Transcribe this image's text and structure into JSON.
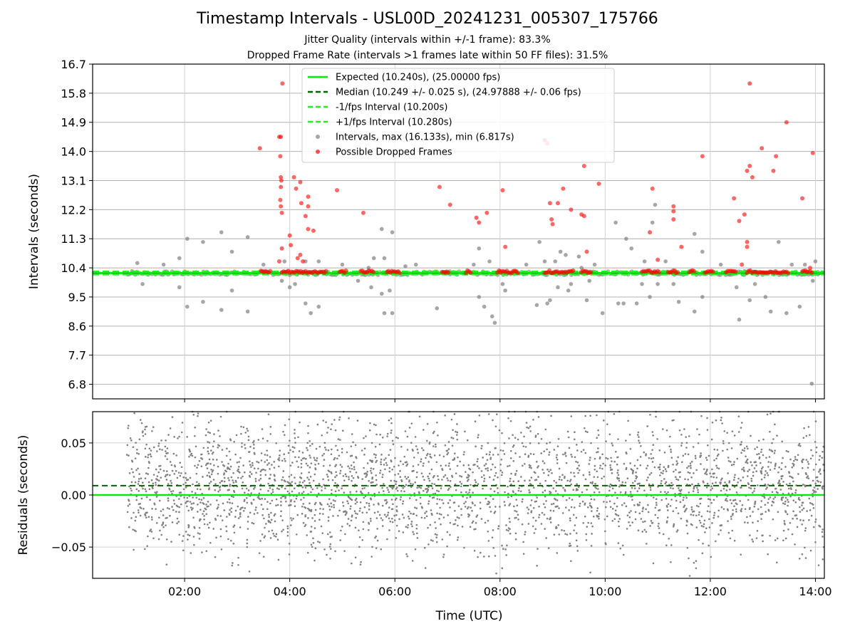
{
  "title": "Timestamp Intervals - USL00D_20241231_005307_175766",
  "subtitle_1": "Jitter Quality (intervals within +/-1 frame): 83.3%",
  "subtitle_2": "Dropped Frame Rate (intervals >1 frames late within 50 FF files): 31.5%",
  "chart_data": [
    {
      "type": "scatter",
      "ylabel": "Intervals (seconds)",
      "ylim": [
        6.35,
        16.7
      ],
      "yticks": [
        "16.7",
        "15.8",
        "14.9",
        "14.0",
        "13.1",
        "12.2",
        "11.3",
        "10.4",
        "9.5",
        "8.6",
        "7.7",
        "6.8"
      ],
      "xlim_hours": [
        0.25,
        14.17
      ],
      "grid": true,
      "legend_position": "top-center",
      "reference_lines": [
        {
          "name": "Expected (10.240s), (25.00000 fps)",
          "y": 10.24,
          "style": "solid",
          "color": "#00ee00"
        },
        {
          "name": "Median (10.249 +/- 0.025 s), (24.97888 +/- 0.06 fps)",
          "y": 10.249,
          "style": "dashed",
          "color": "#006400"
        },
        {
          "name": "-1/fps Interval (10.200s)",
          "y": 10.2,
          "style": "dashed",
          "color": "#22ee22"
        },
        {
          "name": "+1/fps Interval (10.280s)",
          "y": 10.28,
          "style": "dashed",
          "color": "#22ee22"
        }
      ],
      "series": [
        {
          "name": "Intervals, max (16.133s), min (6.817s)",
          "color": "#808080",
          "points": [
            [
              1.0,
              10.3
            ],
            [
              1.1,
              10.55
            ],
            [
              1.2,
              9.9
            ],
            [
              1.6,
              10.5
            ],
            [
              1.9,
              10.7
            ],
            [
              1.9,
              9.8
            ],
            [
              2.05,
              11.3
            ],
            [
              2.05,
              9.2
            ],
            [
              2.35,
              11.2
            ],
            [
              2.35,
              9.35
            ],
            [
              2.7,
              11.5
            ],
            [
              2.7,
              9.1
            ],
            [
              2.9,
              10.9
            ],
            [
              2.9,
              9.7
            ],
            [
              3.2,
              11.35
            ],
            [
              3.2,
              9.05
            ],
            [
              3.5,
              10.5
            ],
            [
              3.85,
              10.0
            ],
            [
              3.9,
              10.6
            ],
            [
              4.0,
              9.8
            ],
            [
              4.1,
              9.9
            ],
            [
              4.3,
              10.6
            ],
            [
              4.3,
              9.3
            ],
            [
              4.4,
              9.0
            ],
            [
              4.55,
              9.2
            ],
            [
              4.55,
              10.6
            ],
            [
              5.0,
              10.5
            ],
            [
              5.3,
              10.0
            ],
            [
              5.5,
              10.4
            ],
            [
              5.55,
              9.8
            ],
            [
              5.6,
              10.7
            ],
            [
              5.75,
              11.6
            ],
            [
              5.75,
              9.6
            ],
            [
              5.8,
              10.7
            ],
            [
              5.8,
              9.0
            ],
            [
              5.9,
              9.7
            ],
            [
              5.95,
              11.5
            ],
            [
              5.95,
              9.0
            ],
            [
              6.2,
              10.45
            ],
            [
              6.4,
              10.5
            ],
            [
              6.8,
              9.15
            ],
            [
              7.05,
              10.2
            ],
            [
              7.5,
              10.5
            ],
            [
              7.6,
              11.0
            ],
            [
              7.6,
              9.5
            ],
            [
              7.7,
              9.2
            ],
            [
              7.8,
              10.6
            ],
            [
              7.85,
              8.9
            ],
            [
              7.9,
              8.7
            ],
            [
              8.0,
              10.3
            ],
            [
              8.05,
              9.9
            ],
            [
              8.1,
              9.7
            ],
            [
              8.5,
              10.5
            ],
            [
              8.7,
              9.25
            ],
            [
              8.75,
              11.2
            ],
            [
              8.85,
              10.6
            ],
            [
              8.9,
              9.3
            ],
            [
              8.95,
              9.4
            ],
            [
              9.05,
              10.6
            ],
            [
              9.1,
              9.8
            ],
            [
              9.15,
              10.9
            ],
            [
              9.25,
              10.8
            ],
            [
              9.3,
              9.7
            ],
            [
              9.35,
              9.9
            ],
            [
              9.5,
              10.75
            ],
            [
              9.55,
              10.4
            ],
            [
              9.65,
              9.4
            ],
            [
              9.7,
              10.0
            ],
            [
              9.8,
              10.5
            ],
            [
              9.95,
              9.0
            ],
            [
              10.2,
              11.8
            ],
            [
              10.25,
              9.3
            ],
            [
              10.35,
              9.3
            ],
            [
              10.4,
              11.3
            ],
            [
              10.5,
              11.0
            ],
            [
              10.6,
              9.3
            ],
            [
              10.7,
              9.9
            ],
            [
              10.75,
              10.6
            ],
            [
              10.85,
              9.5
            ],
            [
              10.9,
              11.8
            ],
            [
              10.95,
              12.35
            ],
            [
              11.0,
              9.9
            ],
            [
              11.15,
              10.6
            ],
            [
              11.3,
              9.9
            ],
            [
              11.4,
              9.35
            ],
            [
              11.7,
              11.45
            ],
            [
              11.7,
              9.05
            ],
            [
              11.85,
              10.9
            ],
            [
              11.85,
              9.5
            ],
            [
              12.2,
              10.5
            ],
            [
              12.35,
              10.2
            ],
            [
              12.5,
              9.8
            ],
            [
              12.55,
              8.8
            ],
            [
              12.65,
              10.3
            ],
            [
              12.75,
              9.4
            ],
            [
              12.85,
              9.9
            ],
            [
              13.05,
              9.5
            ],
            [
              13.15,
              9.05
            ],
            [
              13.3,
              11.2
            ],
            [
              13.45,
              9.0
            ],
            [
              13.55,
              10.5
            ],
            [
              13.7,
              9.2
            ],
            [
              13.8,
              10.5
            ],
            [
              13.95,
              10.0
            ],
            [
              14.0,
              10.6
            ],
            [
              14.05,
              10.2
            ],
            [
              13.93,
              6.82
            ]
          ]
        },
        {
          "name": "Possible Dropped Frames",
          "color": "#ff0000",
          "points": [
            [
              3.43,
              14.1
            ],
            [
              3.8,
              14.45
            ],
            [
              3.83,
              14.45
            ],
            [
              3.82,
              13.85
            ],
            [
              3.83,
              13.2
            ],
            [
              3.84,
              13.1
            ],
            [
              3.83,
              12.9
            ],
            [
              3.82,
              12.5
            ],
            [
              3.83,
              12.3
            ],
            [
              3.85,
              12.1
            ],
            [
              3.85,
              11.0
            ],
            [
              3.8,
              10.6
            ],
            [
              3.86,
              16.1
            ],
            [
              4.0,
              11.4
            ],
            [
              4.02,
              11.1
            ],
            [
              4.08,
              13.2
            ],
            [
              4.12,
              12.85
            ],
            [
              4.2,
              13.05
            ],
            [
              4.22,
              12.4
            ],
            [
              4.3,
              12.0
            ],
            [
              4.35,
              12.6
            ],
            [
              4.35,
              12.3
            ],
            [
              4.35,
              11.6
            ],
            [
              4.45,
              11.55
            ],
            [
              4.2,
              10.8
            ],
            [
              4.15,
              10.7
            ],
            [
              4.25,
              10.6
            ],
            [
              4.9,
              12.8
            ],
            [
              5.4,
              12.1
            ],
            [
              6.85,
              12.9
            ],
            [
              7.05,
              12.35
            ],
            [
              7.55,
              11.95
            ],
            [
              7.6,
              11.8
            ],
            [
              7.75,
              12.1
            ],
            [
              8.05,
              12.8
            ],
            [
              8.1,
              11.05
            ],
            [
              8.85,
              14.35
            ],
            [
              8.9,
              14.25
            ],
            [
              8.95,
              12.4
            ],
            [
              8.98,
              11.9
            ],
            [
              9.0,
              11.75
            ],
            [
              9.1,
              12.4
            ],
            [
              9.2,
              12.85
            ],
            [
              9.35,
              12.2
            ],
            [
              9.55,
              12.05
            ],
            [
              9.6,
              12.0
            ],
            [
              9.6,
              13.55
            ],
            [
              9.65,
              10.9
            ],
            [
              9.88,
              13.0
            ],
            [
              10.85,
              11.5
            ],
            [
              11.0,
              10.65
            ],
            [
              10.9,
              12.85
            ],
            [
              11.3,
              12.3
            ],
            [
              11.3,
              12.15
            ],
            [
              11.3,
              11.9
            ],
            [
              11.45,
              11.05
            ],
            [
              11.85,
              13.85
            ],
            [
              12.45,
              12.55
            ],
            [
              12.55,
              11.85
            ],
            [
              12.6,
              10.5
            ],
            [
              12.65,
              12.05
            ],
            [
              12.7,
              11.2
            ],
            [
              12.7,
              11.05
            ],
            [
              12.7,
              13.4
            ],
            [
              12.75,
              13.55
            ],
            [
              12.75,
              16.1
            ],
            [
              12.8,
              13.2
            ],
            [
              12.98,
              14.1
            ],
            [
              13.2,
              13.4
            ],
            [
              13.25,
              13.85
            ],
            [
              13.45,
              14.9
            ],
            [
              13.75,
              12.55
            ],
            [
              13.95,
              13.95
            ],
            [
              13.9,
              10.4
            ]
          ]
        }
      ]
    },
    {
      "type": "scatter",
      "xlabel": "Time (UTC)",
      "ylabel": "Residuals (seconds)",
      "ylim": [
        -0.08,
        0.08
      ],
      "yticks": [
        "0.05",
        "0.00",
        "−0.05"
      ],
      "xticks": [
        "02:00",
        "04:00",
        "06:00",
        "08:00",
        "10:00",
        "12:00",
        "14:00"
      ],
      "xtick_hours": [
        2,
        4,
        6,
        8,
        10,
        12,
        14
      ],
      "xlim_hours": [
        0.25,
        14.17
      ],
      "grid": true,
      "reference_lines": [
        {
          "y": 0.0,
          "style": "solid",
          "color": "#00ee00"
        },
        {
          "y": 0.009,
          "style": "dashed",
          "color": "#006400"
        }
      ],
      "series": [
        {
          "color": "#808080",
          "x_range_hours": [
            0.9,
            14.17
          ],
          "y_range": [
            -0.08,
            0.08
          ],
          "mean": 0.009,
          "count": 3000
        }
      ]
    }
  ]
}
